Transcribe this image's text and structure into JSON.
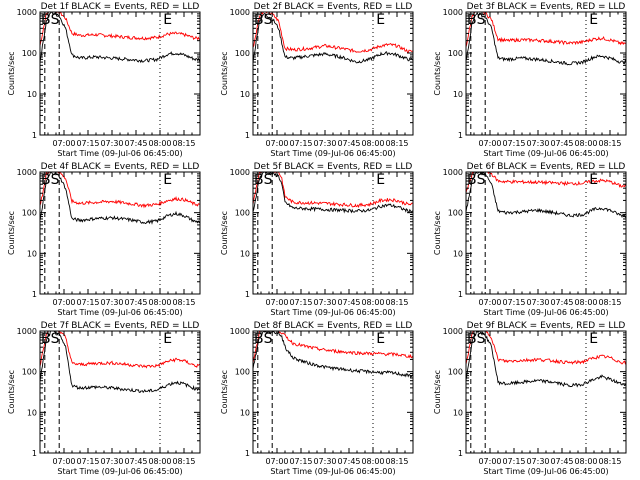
{
  "chart_data": [
    {
      "type": "line",
      "title": "Det 1f BLACK = Events, RED = LLD",
      "xlabel": "Start Time (09-Jul-06 06:45:00)",
      "ylabel": "Counts/sec",
      "yscale": "log",
      "ylim": [
        1,
        1000
      ],
      "xlim": [
        "06:45",
        "08:25"
      ],
      "yticks": [
        "1",
        "10",
        "100",
        "1000"
      ],
      "xticks": [
        "07:00",
        "07:15",
        "07:30",
        "07:45",
        "08:00",
        "08:15"
      ],
      "annotations": [
        "B",
        "S",
        "E"
      ],
      "series": [
        {
          "color": "#ff0000",
          "x": [
            "06:45",
            "06:49",
            "06:52",
            "06:57",
            "07:01",
            "07:05",
            "07:10",
            "07:20",
            "07:30",
            "07:40",
            "07:50",
            "07:58",
            "08:05",
            "08:10",
            "08:15",
            "08:22"
          ],
          "values": [
            150,
            900,
            1200,
            1000,
            700,
            300,
            270,
            280,
            260,
            240,
            230,
            240,
            290,
            300,
            280,
            230
          ]
        },
        {
          "color": "#000000",
          "x": [
            "06:45",
            "06:49",
            "06:52",
            "06:57",
            "07:01",
            "07:05",
            "07:10",
            "07:20",
            "07:30",
            "07:40",
            "07:50",
            "07:58",
            "08:05",
            "08:10",
            "08:15",
            "08:22"
          ],
          "values": [
            60,
            600,
            1000,
            800,
            400,
            90,
            75,
            80,
            75,
            70,
            65,
            70,
            95,
            100,
            90,
            70
          ]
        }
      ]
    },
    {
      "type": "line",
      "title": "Det 2f BLACK = Events, RED = LLD",
      "xlabel": "Start Time (09-Jul-06 06:45:00)",
      "ylabel": "Counts/sec",
      "yscale": "log",
      "ylim": [
        1,
        1000
      ],
      "xlim": [
        "06:45",
        "08:25"
      ],
      "yticks": [
        "1",
        "10",
        "100",
        "1000"
      ],
      "xticks": [
        "07:00",
        "07:15",
        "07:30",
        "07:45",
        "08:00",
        "08:15"
      ],
      "annotations": [
        "B",
        "S",
        "E"
      ],
      "series": [
        {
          "color": "#ff0000",
          "x": [
            "06:45",
            "06:49",
            "06:52",
            "06:57",
            "07:01",
            "07:05",
            "07:10",
            "07:20",
            "07:30",
            "07:40",
            "07:50",
            "07:58",
            "08:05",
            "08:10",
            "08:15",
            "08:22"
          ],
          "values": [
            130,
            800,
            1100,
            900,
            600,
            130,
            120,
            130,
            150,
            130,
            110,
            120,
            150,
            160,
            150,
            110
          ]
        },
        {
          "color": "#000000",
          "x": [
            "06:45",
            "06:49",
            "06:52",
            "06:57",
            "07:01",
            "07:05",
            "07:10",
            "07:20",
            "07:30",
            "07:40",
            "07:50",
            "07:58",
            "08:05",
            "08:10",
            "08:15",
            "08:22"
          ],
          "values": [
            60,
            600,
            900,
            700,
            400,
            80,
            75,
            85,
            95,
            80,
            60,
            70,
            95,
            100,
            90,
            70
          ]
        }
      ]
    },
    {
      "type": "line",
      "title": "Det 3f BLACK = Events, RED = LLD",
      "xlabel": "Start Time (09-Jul-06 06:45:00)",
      "ylabel": "Counts/sec",
      "yscale": "log",
      "ylim": [
        1,
        1000
      ],
      "xlim": [
        "06:45",
        "08:25"
      ],
      "yticks": [
        "1",
        "10",
        "100",
        "1000"
      ],
      "xticks": [
        "07:00",
        "07:15",
        "07:30",
        "07:45",
        "08:00",
        "08:15"
      ],
      "annotations": [
        "B",
        "S",
        "E"
      ],
      "series": [
        {
          "color": "#ff0000",
          "x": [
            "06:45",
            "06:49",
            "06:52",
            "06:57",
            "07:01",
            "07:05",
            "07:10",
            "07:20",
            "07:30",
            "07:40",
            "07:50",
            "07:58",
            "08:05",
            "08:10",
            "08:15",
            "08:22"
          ],
          "values": [
            140,
            850,
            1150,
            950,
            650,
            220,
            200,
            210,
            205,
            190,
            175,
            185,
            220,
            230,
            210,
            170
          ]
        },
        {
          "color": "#000000",
          "x": [
            "06:45",
            "06:49",
            "06:52",
            "06:57",
            "07:01",
            "07:05",
            "07:10",
            "07:20",
            "07:30",
            "07:40",
            "07:50",
            "07:58",
            "08:05",
            "08:10",
            "08:15",
            "08:22"
          ],
          "values": [
            60,
            600,
            950,
            750,
            400,
            75,
            70,
            75,
            70,
            62,
            55,
            60,
            80,
            85,
            75,
            60
          ]
        }
      ]
    },
    {
      "type": "line",
      "title": "Det 4f BLACK = Events, RED = LLD",
      "xlabel": "Start Time (09-Jul-06 06:45:00)",
      "ylabel": "Counts/sec",
      "yscale": "log",
      "ylim": [
        1,
        1000
      ],
      "xlim": [
        "06:45",
        "08:25"
      ],
      "yticks": [
        "1",
        "10",
        "100",
        "1000"
      ],
      "xticks": [
        "07:00",
        "07:15",
        "07:30",
        "07:45",
        "08:00",
        "08:15"
      ],
      "annotations": [
        "B",
        "S",
        "E"
      ],
      "series": [
        {
          "color": "#ff0000",
          "x": [
            "06:45",
            "06:49",
            "06:52",
            "06:57",
            "07:01",
            "07:05",
            "07:10",
            "07:20",
            "07:30",
            "07:40",
            "07:50",
            "07:58",
            "08:05",
            "08:10",
            "08:15",
            "08:22"
          ],
          "values": [
            140,
            900,
            1200,
            1000,
            700,
            190,
            170,
            180,
            190,
            170,
            150,
            160,
            200,
            220,
            210,
            160
          ]
        },
        {
          "color": "#000000",
          "x": [
            "06:45",
            "06:49",
            "06:52",
            "06:57",
            "07:01",
            "07:05",
            "07:10",
            "07:20",
            "07:30",
            "07:40",
            "07:50",
            "07:58",
            "08:05",
            "08:10",
            "08:15",
            "08:22"
          ],
          "values": [
            60,
            600,
            1000,
            800,
            400,
            70,
            65,
            72,
            75,
            68,
            58,
            62,
            85,
            95,
            85,
            60
          ]
        }
      ]
    },
    {
      "type": "line",
      "title": "Det 5f BLACK = Events, RED = LLD",
      "xlabel": "Start Time (09-Jul-06 06:45:00)",
      "ylabel": "Counts/sec",
      "yscale": "log",
      "ylim": [
        1,
        1000
      ],
      "xlim": [
        "06:45",
        "08:25"
      ],
      "yticks": [
        "1",
        "10",
        "100",
        "1000"
      ],
      "xticks": [
        "07:00",
        "07:15",
        "07:30",
        "07:45",
        "08:00",
        "08:15"
      ],
      "annotations": [
        "B",
        "S",
        "E"
      ],
      "series": [
        {
          "color": "#ff0000",
          "x": [
            "06:45",
            "06:49",
            "06:52",
            "06:57",
            "07:01",
            "07:03",
            "07:05",
            "07:10",
            "07:20",
            "07:30",
            "07:40",
            "07:50",
            "07:58",
            "08:05",
            "08:10",
            "08:15",
            "08:22"
          ],
          "values": [
            160,
            900,
            1200,
            1100,
            1000,
            700,
            250,
            180,
            175,
            170,
            160,
            150,
            160,
            200,
            210,
            200,
            160
          ]
        },
        {
          "color": "#000000",
          "x": [
            "06:45",
            "06:49",
            "06:52",
            "06:57",
            "07:01",
            "07:03",
            "07:05",
            "07:10",
            "07:20",
            "07:30",
            "07:40",
            "07:50",
            "07:58",
            "08:05",
            "08:10",
            "08:15",
            "08:22"
          ],
          "values": [
            100,
            700,
            1000,
            900,
            800,
            500,
            180,
            130,
            125,
            120,
            115,
            110,
            115,
            145,
            155,
            140,
            110
          ]
        }
      ]
    },
    {
      "type": "line",
      "title": "Det 6f BLACK = Events, RED = LLD",
      "xlabel": "Start Time (09-Jul-06 06:45:00)",
      "ylabel": "Counts/sec",
      "yscale": "log",
      "ylim": [
        1,
        1000
      ],
      "xlim": [
        "06:45",
        "08:25"
      ],
      "yticks": [
        "1",
        "10",
        "100",
        "1000"
      ],
      "xticks": [
        "07:00",
        "07:15",
        "07:30",
        "07:45",
        "08:00",
        "08:15"
      ],
      "annotations": [
        "B",
        "S",
        "E"
      ],
      "series": [
        {
          "color": "#ff0000",
          "x": [
            "06:45",
            "06:49",
            "06:52",
            "06:57",
            "07:01",
            "07:05",
            "07:10",
            "07:20",
            "07:30",
            "07:40",
            "07:50",
            "07:58",
            "08:05",
            "08:10",
            "08:15",
            "08:22"
          ],
          "values": [
            300,
            900,
            1200,
            1100,
            900,
            600,
            580,
            570,
            560,
            540,
            520,
            530,
            600,
            620,
            580,
            450
          ]
        },
        {
          "color": "#000000",
          "x": [
            "06:45",
            "06:49",
            "06:52",
            "06:57",
            "07:01",
            "07:05",
            "07:10",
            "07:20",
            "07:30",
            "07:40",
            "07:50",
            "07:58",
            "08:05",
            "08:10",
            "08:15",
            "08:22"
          ],
          "values": [
            100,
            700,
            1000,
            900,
            500,
            110,
            100,
            105,
            115,
            100,
            85,
            90,
            120,
            130,
            115,
            85
          ]
        }
      ]
    },
    {
      "type": "line",
      "title": "Det 7f BLACK = Events, RED = LLD",
      "xlabel": "Start Time (09-Jul-06 06:45:00)",
      "ylabel": "Counts/sec",
      "yscale": "log",
      "ylim": [
        1,
        1000
      ],
      "xlim": [
        "06:45",
        "08:25"
      ],
      "yticks": [
        "1",
        "10",
        "100",
        "1000"
      ],
      "xticks": [
        "07:00",
        "07:15",
        "07:30",
        "07:45",
        "08:00",
        "08:15"
      ],
      "annotations": [
        "B",
        "S",
        "E"
      ],
      "series": [
        {
          "color": "#ff0000",
          "x": [
            "06:45",
            "06:49",
            "06:52",
            "06:57",
            "07:01",
            "07:05",
            "07:10",
            "07:20",
            "07:30",
            "07:40",
            "07:50",
            "07:58",
            "08:05",
            "08:10",
            "08:15",
            "08:22"
          ],
          "values": [
            140,
            900,
            1200,
            1000,
            700,
            160,
            150,
            160,
            165,
            150,
            135,
            140,
            180,
            200,
            185,
            140
          ]
        },
        {
          "color": "#000000",
          "x": [
            "06:45",
            "06:49",
            "06:52",
            "06:57",
            "07:01",
            "07:05",
            "07:10",
            "07:20",
            "07:30",
            "07:40",
            "07:50",
            "07:58",
            "08:05",
            "08:10",
            "08:15",
            "08:22"
          ],
          "values": [
            60,
            600,
            1000,
            800,
            400,
            45,
            40,
            42,
            40,
            36,
            33,
            35,
            48,
            55,
            50,
            38
          ]
        }
      ]
    },
    {
      "type": "line",
      "title": "Det 8f BLACK = Events, RED = LLD",
      "xlabel": "Start Time (09-Jul-06 06:45:00)",
      "ylabel": "Counts/sec",
      "yscale": "log",
      "ylim": [
        1,
        1000
      ],
      "xlim": [
        "06:45",
        "08:25"
      ],
      "yticks": [
        "1",
        "10",
        "100",
        "1000"
      ],
      "xticks": [
        "07:00",
        "07:15",
        "07:30",
        "07:45",
        "08:00",
        "08:15"
      ],
      "annotations": [
        "B",
        "S",
        "E"
      ],
      "series": [
        {
          "color": "#ff0000",
          "x": [
            "06:45",
            "06:49",
            "06:52",
            "06:57",
            "07:01",
            "07:03",
            "07:06",
            "07:10",
            "07:20",
            "07:30",
            "07:40",
            "07:50",
            "07:58",
            "08:05",
            "08:10",
            "08:15",
            "08:22"
          ],
          "values": [
            170,
            900,
            1200,
            1100,
            1050,
            900,
            700,
            500,
            400,
            340,
            310,
            290,
            280,
            275,
            270,
            265,
            240
          ]
        },
        {
          "color": "#000000",
          "x": [
            "06:45",
            "06:49",
            "06:52",
            "06:57",
            "07:01",
            "07:03",
            "07:06",
            "07:10",
            "07:20",
            "07:30",
            "07:40",
            "07:50",
            "07:58",
            "08:05",
            "08:10",
            "08:15",
            "08:22"
          ],
          "values": [
            120,
            700,
            1000,
            950,
            900,
            700,
            350,
            220,
            160,
            130,
            115,
            105,
            100,
            95,
            95,
            90,
            80
          ]
        }
      ]
    },
    {
      "type": "line",
      "title": "Det 9f BLACK = Events, RED = LLD",
      "xlabel": "Start Time (09-Jul-06 06:45:00)",
      "ylabel": "Counts/sec",
      "yscale": "log",
      "ylim": [
        1,
        1000
      ],
      "xlim": [
        "06:45",
        "08:25"
      ],
      "yticks": [
        "1",
        "10",
        "100",
        "1000"
      ],
      "xticks": [
        "07:00",
        "07:15",
        "07:30",
        "07:45",
        "08:00",
        "08:15"
      ],
      "annotations": [
        "B",
        "S",
        "E"
      ],
      "series": [
        {
          "color": "#ff0000",
          "x": [
            "06:45",
            "06:49",
            "06:52",
            "06:57",
            "07:01",
            "07:05",
            "07:10",
            "07:20",
            "07:30",
            "07:40",
            "07:50",
            "07:58",
            "08:05",
            "08:10",
            "08:15",
            "08:22"
          ],
          "values": [
            150,
            900,
            1200,
            1000,
            700,
            200,
            180,
            190,
            200,
            185,
            165,
            175,
            220,
            240,
            220,
            170
          ]
        },
        {
          "color": "#000000",
          "x": [
            "06:45",
            "06:49",
            "06:52",
            "06:57",
            "07:01",
            "07:05",
            "07:10",
            "07:20",
            "07:30",
            "07:40",
            "07:50",
            "07:58",
            "08:05",
            "08:10",
            "08:15",
            "08:22"
          ],
          "values": [
            60,
            600,
            1000,
            800,
            400,
            55,
            50,
            55,
            60,
            55,
            45,
            50,
            65,
            75,
            65,
            50
          ]
        }
      ]
    }
  ]
}
